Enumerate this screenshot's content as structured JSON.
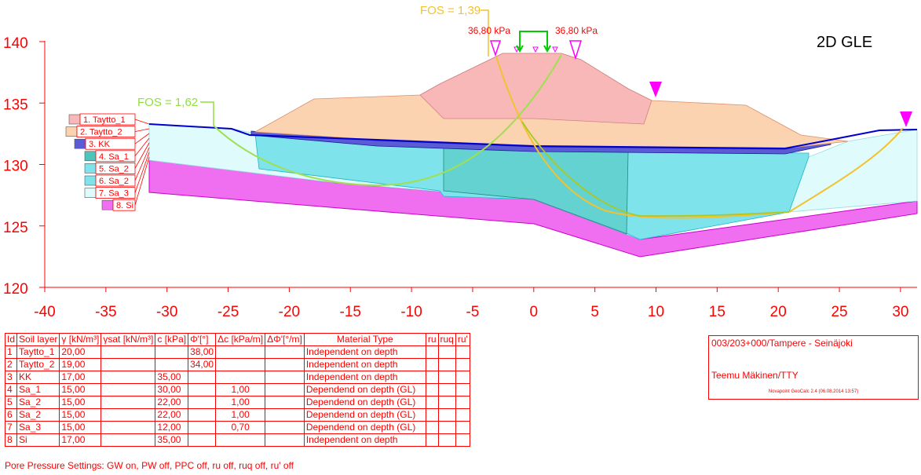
{
  "title": "2D GLE",
  "fos_labels": [
    {
      "text": "FOS = 1,39",
      "color": "#f2c230"
    },
    {
      "text": "FOS = 1,62",
      "color": "#8fe03c"
    }
  ],
  "load_labels": [
    "36,80 kPa",
    "36,80 kPa"
  ],
  "axes": {
    "x_ticks": [
      "-40",
      "-35",
      "-30",
      "-25",
      "-20",
      "-15",
      "-10",
      "-5",
      "0",
      "5",
      "10",
      "15",
      "20",
      "25",
      "30"
    ],
    "y_ticks": [
      "140",
      "135",
      "130",
      "125",
      "120"
    ]
  },
  "legend": [
    {
      "label": "1. Taytto_1",
      "color": "#f8b8b8"
    },
    {
      "label": "2. Taytto_2",
      "color": "#fbd3b0"
    },
    {
      "label": "3. KK",
      "color": "#5b5bd6"
    },
    {
      "label": "4. Sa_1",
      "color": "#4fc4bb"
    },
    {
      "label": "5. Sa_2",
      "color": "#7fe3ec"
    },
    {
      "label": "6. Sa_2",
      "color": "#7fe3ec"
    },
    {
      "label": "7. Sa_3",
      "color": "#e0fbfc"
    },
    {
      "label": "8. Si",
      "color": "#f06ef0"
    }
  ],
  "table": {
    "headers": [
      "Id",
      "Soil layer",
      "γ [kN/m³]",
      "γsat [kN/m³]",
      "c [kPa]",
      "Φ'[°]",
      "Δc [kPa/m]",
      "ΔΦ'[°/m]",
      "Material Type",
      "ru",
      "ruq",
      "ru'"
    ],
    "rows": [
      [
        "1",
        "Taytto_1",
        "20,00",
        "",
        "",
        "38,00",
        "",
        "",
        "Independent on depth",
        "",
        "",
        ""
      ],
      [
        "2",
        "Taytto_2",
        "19,00",
        "",
        "",
        "34,00",
        "",
        "",
        "Independent on depth",
        "",
        "",
        ""
      ],
      [
        "3",
        "KK",
        "17,00",
        "",
        "35,00",
        "",
        "",
        "",
        "Independent on depth",
        "",
        "",
        ""
      ],
      [
        "4",
        "Sa_1",
        "15,00",
        "",
        "30,00",
        "",
        "1,00",
        "",
        "Dependend on depth (GL)",
        "",
        "",
        ""
      ],
      [
        "5",
        "Sa_2",
        "15,00",
        "",
        "22,00",
        "",
        "1,00",
        "",
        "Dependend on depth (GL)",
        "",
        "",
        ""
      ],
      [
        "6",
        "Sa_2",
        "15,00",
        "",
        "22,00",
        "",
        "1,00",
        "",
        "Dependend on depth (GL)",
        "",
        "",
        ""
      ],
      [
        "7",
        "Sa_3",
        "15,00",
        "",
        "12,00",
        "",
        "0,70",
        "",
        "Dependend on depth (GL)",
        "",
        "",
        ""
      ],
      [
        "8",
        "Si",
        "17,00",
        "",
        "35,00",
        "",
        "",
        "",
        "Independent on depth",
        "",
        "",
        ""
      ]
    ]
  },
  "pore_pressure": "Pore Pressure Settings: GW on, PW off, PPC off, ru off, ruq off, ru' off",
  "info": {
    "project": "003/203+000/Tampere - Seinäjoki",
    "author": "Teemu Mäkinen/TTY",
    "software": "Novapoint GeoCalc 2.4  (06.08.2014 13:57)"
  },
  "colors": {
    "axis": "#ff0000",
    "groundwater": "#0000cc",
    "marker": "#ff00ff",
    "load": "#00cc00"
  }
}
